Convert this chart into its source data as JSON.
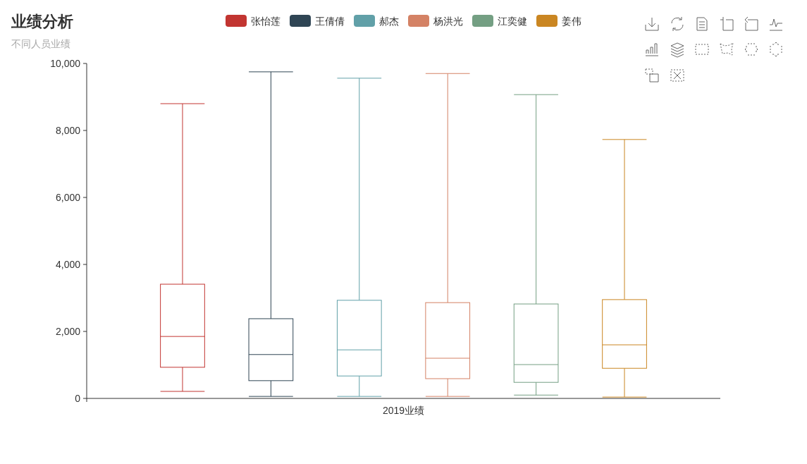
{
  "chart_data": {
    "type": "box",
    "title": "业绩分析",
    "subtitle": "不同人员业绩",
    "categories": [
      "2019业绩"
    ],
    "ylim": [
      0,
      10000
    ],
    "yticks": [
      0,
      {
        "value": 2000,
        "label": "2,000"
      },
      {
        "value": 4000,
        "label": "4,000"
      },
      {
        "value": 6000,
        "label": "6,000"
      },
      {
        "value": 8000,
        "label": "8,000"
      },
      {
        "value": 10000,
        "label": "10,000"
      }
    ],
    "legend": "top",
    "series": [
      {
        "name": "张怡莲",
        "color": "#c23531",
        "boxes": [
          {
            "low": 210,
            "q1": 930,
            "median": 1850,
            "q3": 3410,
            "high": 8800
          }
        ]
      },
      {
        "name": "王倩倩",
        "color": "#2f4554",
        "boxes": [
          {
            "low": 60,
            "q1": 530,
            "median": 1310,
            "q3": 2380,
            "high": 9750
          }
        ]
      },
      {
        "name": "郝杰",
        "color": "#61a0a8",
        "boxes": [
          {
            "low": 60,
            "q1": 670,
            "median": 1450,
            "q3": 2930,
            "high": 9560
          }
        ]
      },
      {
        "name": "杨洪光",
        "color": "#d48265",
        "boxes": [
          {
            "low": 60,
            "q1": 590,
            "median": 1200,
            "q3": 2860,
            "high": 9700
          }
        ]
      },
      {
        "name": "江奕健",
        "color": "#749f83",
        "boxes": [
          {
            "low": 100,
            "q1": 480,
            "median": 1010,
            "q3": 2820,
            "high": 9070
          }
        ]
      },
      {
        "name": "姜伟",
        "color": "#ca8622",
        "boxes": [
          {
            "low": 40,
            "q1": 900,
            "median": 1600,
            "q3": 2950,
            "high": 7730
          }
        ]
      }
    ]
  }
}
